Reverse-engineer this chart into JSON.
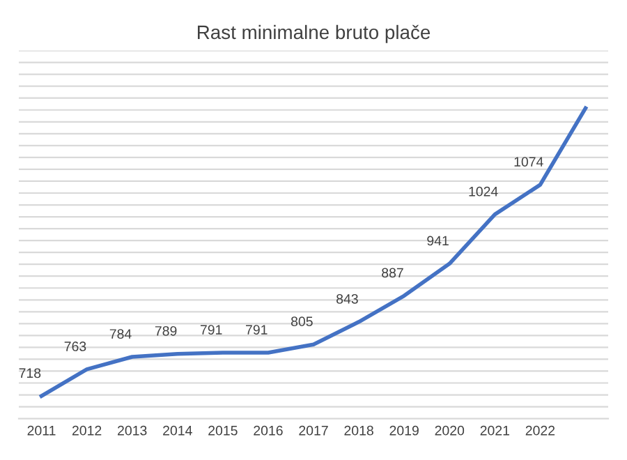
{
  "chart_data": {
    "type": "line",
    "title": "Rast minimalne bruto plače",
    "categories": [
      "2011",
      "2012",
      "2013",
      "2014",
      "2015",
      "2016",
      "2017",
      "2018",
      "2019",
      "2020",
      "2021",
      "2022",
      null
    ],
    "series": [
      {
        "color": "#4472c4",
        "values": [
          718,
          763,
          784,
          789,
          791,
          791,
          805,
          843,
          887,
          941,
          1024,
          1074,
          1203
        ],
        "value_labels": [
          "718",
          "763",
          "784",
          "789",
          "791",
          "791",
          "805",
          "843",
          "887",
          "941",
          "1024",
          "1074",
          null
        ]
      }
    ],
    "ylim": [
      680,
      1300
    ],
    "yticks": [
      {
        "value": 700,
        "label": null
      },
      {
        "value": 720,
        "label": null
      },
      {
        "value": 740,
        "label": null
      },
      {
        "value": 760,
        "label": null
      },
      {
        "value": 780,
        "label": null
      },
      {
        "value": 800,
        "label": null
      },
      {
        "value": 820,
        "label": null
      },
      {
        "value": 840,
        "label": null
      },
      {
        "value": 860,
        "label": null
      },
      {
        "value": 880,
        "label": null
      },
      {
        "value": 900,
        "label": null
      },
      {
        "value": 920,
        "label": null
      },
      {
        "value": 940,
        "label": null
      },
      {
        "value": 960,
        "label": null
      },
      {
        "value": 980,
        "label": null
      },
      {
        "value": 1000,
        "label": null
      },
      {
        "value": 1020,
        "label": null
      },
      {
        "value": 1040,
        "label": null
      },
      {
        "value": 1060,
        "label": null
      },
      {
        "value": 1080,
        "label": null
      },
      {
        "value": 1100,
        "label": null
      },
      {
        "value": 1120,
        "label": null
      },
      {
        "value": 1140,
        "label": null
      },
      {
        "value": 1160,
        "label": null
      },
      {
        "value": 1180,
        "label": null
      },
      {
        "value": 1200,
        "label": null
      },
      {
        "value": 1220,
        "label": null
      },
      {
        "value": 1240,
        "label": null
      },
      {
        "value": 1260,
        "label": null
      },
      {
        "value": 1280,
        "label": null
      },
      {
        "value": 1300,
        "label": null
      }
    ],
    "grid": "y",
    "tick_labels": "x",
    "marker": "none",
    "line_style": "solid"
  }
}
